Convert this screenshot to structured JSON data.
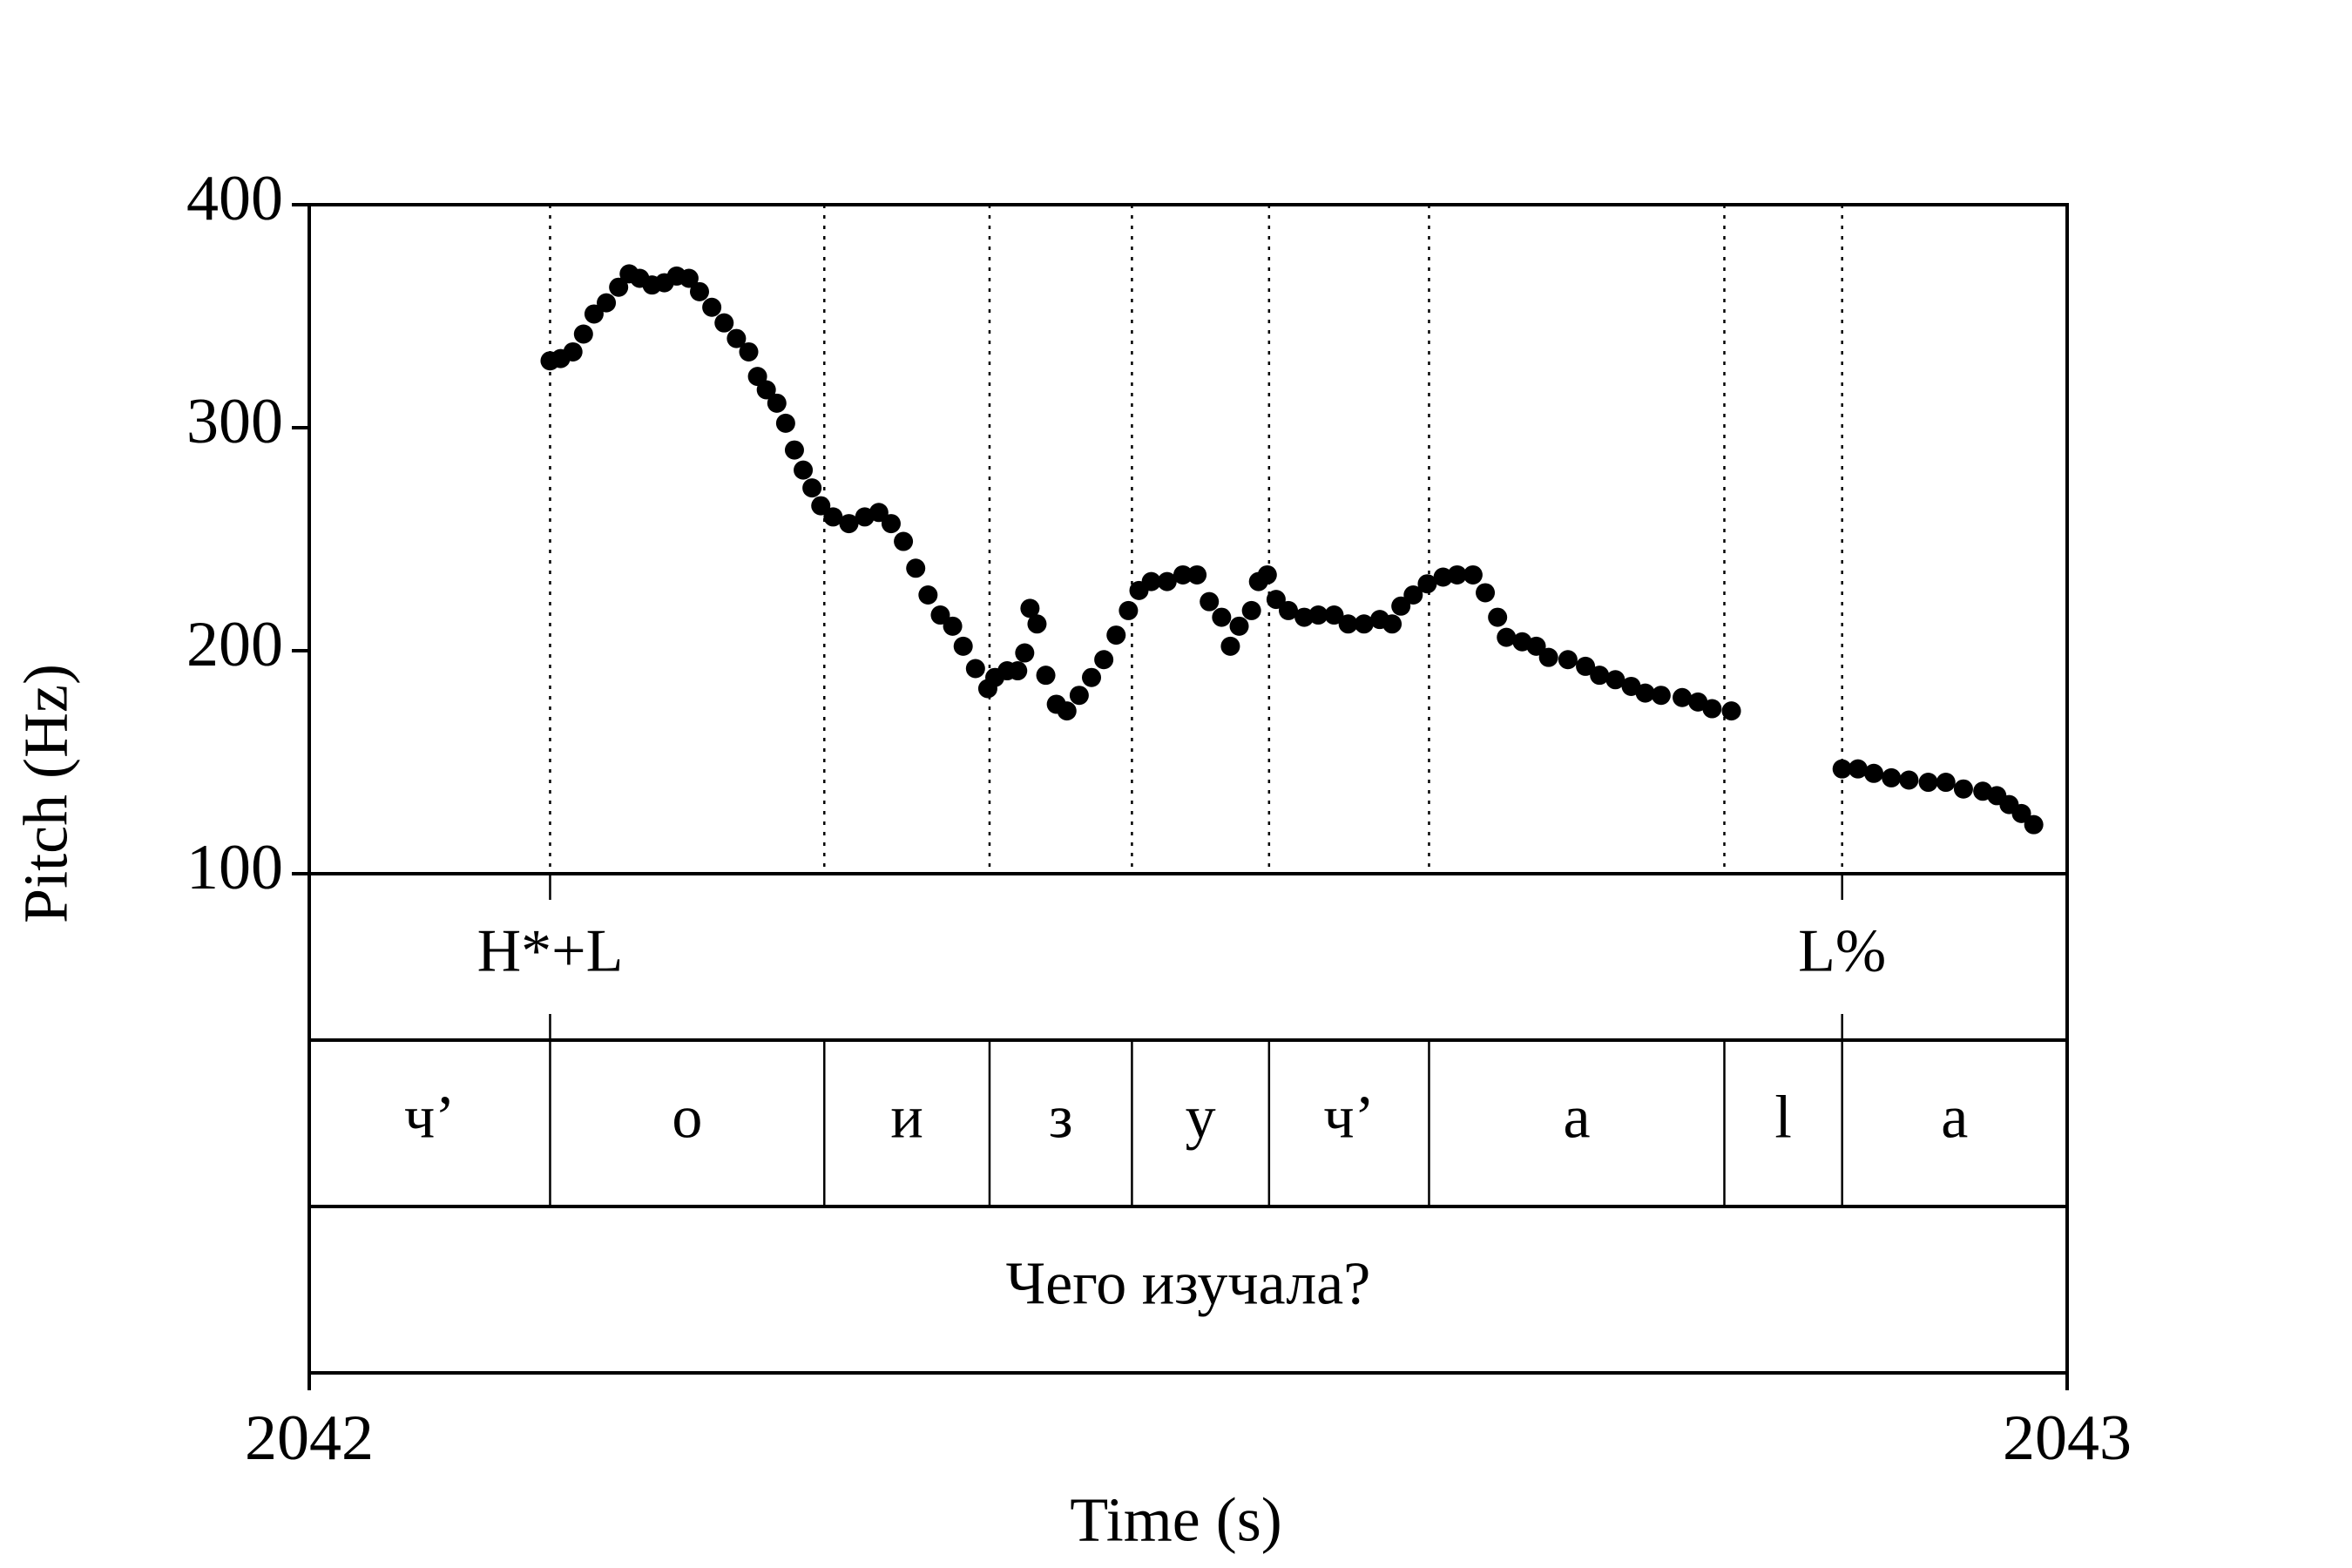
{
  "chart_data": {
    "type": "scatter",
    "xlabel": "Time (s)",
    "ylabel": "Pitch (Hz)",
    "color": "#000000",
    "xlim": [
      2042,
      2043
    ],
    "ylim": [
      100,
      400
    ],
    "xticks": [
      2042,
      2043
    ],
    "yticks": [
      100,
      200,
      300,
      400
    ],
    "x": [
      2042.137,
      2042.143,
      2042.15,
      2042.156,
      2042.162,
      2042.169,
      2042.176,
      2042.182,
      2042.188,
      2042.195,
      2042.202,
      2042.209,
      2042.216,
      2042.222,
      2042.229,
      2042.236,
      2042.243,
      2042.25,
      2042.255,
      2042.26,
      2042.266,
      2042.271,
      2042.276,
      2042.281,
      2042.286,
      2042.291,
      2042.298,
      2042.307,
      2042.316,
      2042.324,
      2042.331,
      2042.338,
      2042.345,
      2042.352,
      2042.359,
      2042.366,
      2042.372,
      2042.379,
      2042.386,
      2042.39,
      2042.397,
      2042.403,
      2042.407,
      2042.41,
      2042.414,
      2042.419,
      2042.425,
      2042.431,
      2042.438,
      2042.445,
      2042.452,
      2042.459,
      2042.466,
      2042.472,
      2042.479,
      2042.488,
      2042.497,
      2042.505,
      2042.512,
      2042.519,
      2042.524,
      2042.529,
      2042.536,
      2042.54,
      2042.545,
      2042.55,
      2042.557,
      2042.566,
      2042.574,
      2042.583,
      2042.591,
      2042.6,
      2042.609,
      2042.616,
      2042.621,
      2042.628,
      2042.636,
      2042.645,
      2042.653,
      2042.662,
      2042.669,
      2042.676,
      2042.681,
      2042.69,
      2042.698,
      2042.705,
      2042.716,
      2042.726,
      2042.734,
      2042.743,
      2042.752,
      2042.76,
      2042.769,
      2042.781,
      2042.79,
      2042.798,
      2042.809,
      2042.872,
      2042.881,
      2042.89,
      2042.9,
      2042.91,
      2042.921,
      2042.931,
      2042.941,
      2042.952,
      2042.96,
      2042.967,
      2042.974,
      2042.981
    ],
    "values": [
      330,
      331,
      334,
      342,
      351,
      356,
      363,
      369,
      367,
      364,
      365,
      368,
      367,
      361,
      354,
      347,
      340,
      334,
      323,
      317,
      311,
      302,
      290,
      281,
      273,
      265,
      260,
      257,
      260,
      262,
      257,
      249,
      237,
      225,
      216,
      211,
      202,
      192,
      183,
      188,
      191,
      191,
      199,
      219,
      212,
      189,
      176,
      173,
      180,
      188,
      196,
      207,
      218,
      227,
      231,
      231,
      234,
      234,
      222,
      215,
      202,
      211,
      218,
      231,
      234,
      223,
      218,
      215,
      216,
      216,
      212,
      212,
      214,
      212,
      220,
      225,
      230,
      233,
      234,
      234,
      226,
      215,
      206,
      204,
      202,
      197,
      196,
      193,
      189,
      187,
      184,
      181,
      180,
      179,
      177,
      174,
      173,
      147,
      147,
      145,
      143,
      142,
      141,
      141,
      138,
      137,
      135,
      131,
      127,
      122
    ]
  },
  "tiers": {
    "tones": {
      "points": [
        {
          "time": 2042.137,
          "label": "H*+L"
        },
        {
          "time": 2042.872,
          "label": "L%"
        }
      ]
    },
    "segments": {
      "boundaries": [
        2042.137,
        2042.293,
        2042.387,
        2042.468,
        2042.546,
        2042.637,
        2042.805,
        2042.872
      ],
      "labels": [
        "ч’",
        "о",
        "и",
        "з",
        "у",
        "ч’",
        "а",
        "l",
        "а"
      ]
    },
    "sentence": {
      "label": "Чего изучала?"
    }
  }
}
